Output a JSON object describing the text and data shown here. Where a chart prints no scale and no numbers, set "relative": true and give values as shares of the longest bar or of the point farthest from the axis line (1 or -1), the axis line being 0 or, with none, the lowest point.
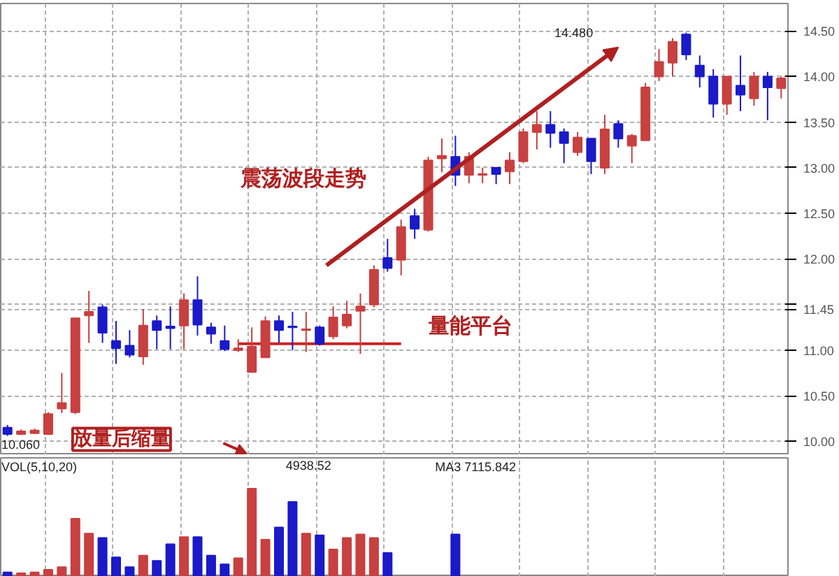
{
  "chart_data": [
    {
      "type": "candlestick",
      "categories": [
        null,
        null,
        null,
        null,
        null,
        null,
        null,
        null,
        null,
        null,
        null,
        null,
        null,
        null,
        null,
        null,
        null,
        null,
        null,
        null,
        null,
        null,
        null,
        null,
        null,
        null,
        null,
        null,
        null,
        null,
        null,
        null,
        null,
        null,
        null,
        null,
        null,
        null,
        null,
        null,
        null,
        null,
        null,
        null,
        null,
        null,
        null,
        null,
        null,
        null,
        null,
        null,
        null,
        null,
        null,
        null,
        null,
        null
      ],
      "ohlc": [
        [
          10.15,
          10.18,
          10.06,
          10.08
        ],
        [
          10.08,
          10.13,
          10.07,
          10.11
        ],
        [
          10.09,
          10.14,
          10.08,
          10.12
        ],
        [
          10.08,
          10.32,
          10.07,
          10.3
        ],
        [
          10.36,
          10.75,
          10.31,
          10.42
        ],
        [
          10.32,
          11.35,
          10.3,
          11.35
        ],
        [
          11.38,
          11.65,
          11.08,
          11.42
        ],
        [
          11.47,
          11.5,
          11.08,
          11.19
        ],
        [
          11.1,
          11.32,
          10.85,
          11.02
        ],
        [
          11.05,
          11.22,
          10.92,
          10.95
        ],
        [
          10.93,
          11.45,
          10.84,
          11.27
        ],
        [
          11.32,
          11.38,
          11.01,
          11.22
        ],
        [
          11.26,
          11.48,
          11.01,
          11.24
        ],
        [
          11.27,
          11.62,
          11.01,
          11.55
        ],
        [
          11.55,
          11.81,
          11.16,
          11.28
        ],
        [
          11.25,
          11.3,
          11.07,
          11.18
        ],
        [
          11.1,
          11.27,
          10.99,
          11.01
        ],
        [
          11.0,
          11.12,
          10.98,
          11.02
        ],
        [
          10.76,
          11.25,
          10.76,
          11.04
        ],
        [
          10.92,
          11.37,
          10.92,
          11.32
        ],
        [
          11.32,
          11.38,
          11.08,
          11.22
        ],
        [
          11.26,
          11.42,
          11.0,
          11.25
        ],
        [
          11.22,
          11.42,
          10.98,
          11.23
        ],
        [
          11.25,
          11.27,
          11.05,
          11.07
        ],
        [
          11.15,
          11.48,
          11.12,
          11.36
        ],
        [
          11.27,
          11.54,
          11.24,
          11.39
        ],
        [
          11.43,
          11.62,
          10.96,
          11.48
        ],
        [
          11.5,
          11.93,
          11.47,
          11.88
        ],
        [
          12.01,
          12.22,
          11.86,
          11.9
        ],
        [
          11.99,
          12.43,
          11.82,
          12.35
        ],
        [
          12.47,
          12.55,
          12.22,
          12.33
        ],
        [
          12.32,
          13.12,
          12.3,
          13.08
        ],
        [
          13.1,
          13.32,
          12.95,
          13.13
        ],
        [
          13.12,
          13.35,
          12.8,
          12.92
        ],
        [
          12.92,
          13.17,
          12.83,
          13.12
        ],
        [
          12.93,
          13.0,
          12.83,
          12.92
        ],
        [
          13.0,
          13.0,
          12.82,
          12.93
        ],
        [
          12.96,
          13.17,
          12.82,
          13.08
        ],
        [
          13.07,
          13.43,
          13.05,
          13.39
        ],
        [
          13.39,
          13.62,
          13.2,
          13.47
        ],
        [
          13.47,
          13.62,
          13.22,
          13.38
        ],
        [
          13.39,
          13.43,
          13.05,
          13.27
        ],
        [
          13.17,
          13.39,
          13.13,
          13.33
        ],
        [
          13.32,
          13.32,
          12.93,
          13.07
        ],
        [
          13.0,
          13.58,
          12.93,
          13.42
        ],
        [
          13.48,
          13.52,
          13.22,
          13.32
        ],
        [
          13.24,
          13.37,
          13.05,
          13.35
        ],
        [
          13.3,
          13.93,
          13.3,
          13.88
        ],
        [
          14.0,
          14.3,
          13.95,
          14.16
        ],
        [
          14.15,
          14.42,
          14.0,
          14.38
        ],
        [
          14.46,
          14.48,
          14.18,
          14.24
        ],
        [
          14.12,
          14.23,
          13.88,
          14.0
        ],
        [
          14.0,
          14.08,
          13.55,
          13.7
        ],
        [
          13.7,
          14.0,
          13.58,
          14.0
        ],
        [
          13.9,
          14.23,
          13.62,
          13.8
        ],
        [
          13.76,
          14.05,
          13.68,
          14.0
        ],
        [
          14.0,
          14.05,
          13.52,
          13.88
        ],
        [
          13.87,
          14.0,
          13.76,
          13.98
        ]
      ],
      "colors": [
        "#1a1ac8",
        "#c84040",
        "#c84040",
        "#c84040",
        "#c84040",
        "#c84040",
        "#c84040",
        "#1a1ac8",
        "#1a1ac8",
        "#1a1ac8",
        "#c84040",
        "#1a1ac8",
        "#1a1ac8",
        "#c84040",
        "#1a1ac8",
        "#1a1ac8",
        "#1a1ac8",
        "#c84040",
        "#c84040",
        "#c84040",
        "#1a1ac8",
        "#1a1ac8",
        "#c84040",
        "#1a1ac8",
        "#c84040",
        "#c84040",
        "#c84040",
        "#c84040",
        "#1a1ac8",
        "#c84040",
        "#1a1ac8",
        "#c84040",
        "#c84040",
        "#1a1ac8",
        "#c84040",
        "#c84040",
        "#1a1ac8",
        "#c84040",
        "#c84040",
        "#c84040",
        "#1a1ac8",
        "#1a1ac8",
        "#c84040",
        "#1a1ac8",
        "#c84040",
        "#1a1ac8",
        "#c84040",
        "#c84040",
        "#c84040",
        "#c84040",
        "#1a1ac8",
        "#1a1ac8",
        "#1a1ac8",
        "#c84040",
        "#1a1ac8",
        "#c84040",
        "#1a1ac8",
        "#c84040"
      ],
      "series": [
        {
          "type": "line",
          "color": "#cc2222",
          "values": [
            null,
            null,
            null,
            null,
            null,
            null,
            null,
            null,
            null,
            null,
            null,
            null,
            null,
            null,
            null,
            null,
            null,
            11.07,
            11.07,
            11.07,
            11.07,
            11.07,
            11.07,
            11.07,
            11.07,
            11.07,
            11.07,
            11.07,
            11.07,
            11.07,
            null,
            null,
            null,
            null,
            null,
            null,
            null,
            null,
            null,
            null,
            null,
            null,
            null,
            null,
            null,
            null,
            null,
            null,
            null,
            null,
            null,
            null,
            null,
            null,
            null,
            null,
            null,
            null
          ]
        }
      ],
      "ylim": [
        9.85,
        14.8
      ],
      "yticks": [
        {
          "value": 10,
          "label": "10.00"
        },
        {
          "value": 10.5,
          "label": "10.50"
        },
        {
          "value": 11,
          "label": "11.00"
        },
        {
          "value": 11.45,
          "label": "11.45"
        },
        {
          "value": 11.5,
          "label": null
        },
        {
          "value": 12,
          "label": "12.00"
        },
        {
          "value": 12.5,
          "label": "12.50"
        },
        {
          "value": 13,
          "label": "13.00"
        },
        {
          "value": 13.5,
          "label": "13.50"
        },
        {
          "value": 14,
          "label": "14.00"
        },
        {
          "value": 14.5,
          "label": "14.50"
        }
      ],
      "grid": true,
      "annotations": [
        "震荡波段走势",
        "量能平台",
        "放量后缩量",
        "14.480",
        "10.060"
      ]
    },
    {
      "type": "bar",
      "title": "VOL(5,10,20)",
      "relative": true,
      "categories": [
        null,
        null,
        null,
        null,
        null,
        null,
        null,
        null,
        null,
        null,
        null,
        null,
        null,
        null,
        null,
        null,
        null,
        null,
        null,
        null,
        null,
        null,
        null,
        null,
        null,
        null,
        null,
        null,
        null,
        null,
        null,
        null,
        null,
        null,
        null,
        null,
        null,
        null,
        null,
        null,
        null,
        null,
        null,
        null,
        null,
        null,
        null,
        null,
        null,
        null,
        null,
        null,
        null,
        null,
        null,
        null,
        null,
        null
      ],
      "values": [
        0.05,
        0.04,
        0.05,
        0.08,
        0.11,
        0.66,
        0.49,
        0.44,
        0.22,
        0.11,
        0.24,
        0.18,
        0.37,
        0.45,
        0.45,
        0.24,
        0.14,
        0.21,
        1.0,
        0.42,
        0.56,
        0.85,
        0.49,
        0.47,
        0.31,
        0.44,
        0.48,
        0.44,
        0.27,
        null,
        null,
        null,
        null,
        0.48,
        null,
        null,
        null,
        null,
        null,
        null,
        null,
        null,
        null,
        null,
        null,
        null,
        null,
        null,
        null,
        null,
        null,
        null,
        null,
        null,
        null,
        null,
        null,
        null
      ],
      "colors": [
        "#1a1ac8",
        "#c84040",
        "#c84040",
        "#c84040",
        "#c84040",
        "#c84040",
        "#c84040",
        "#1a1ac8",
        "#1a1ac8",
        "#1a1ac8",
        "#c84040",
        "#1a1ac8",
        "#1a1ac8",
        "#c84040",
        "#1a1ac8",
        "#1a1ac8",
        "#1a1ac8",
        "#c84040",
        "#c84040",
        "#c84040",
        "#1a1ac8",
        "#1a1ac8",
        "#c84040",
        "#1a1ac8",
        "#c84040",
        "#c84040",
        "#c84040",
        "#c84040",
        "#1a1ac8",
        "#c84040",
        "#1a1ac8",
        "#c84040",
        "#c84040",
        "#1a1ac8",
        "#c84040",
        "#c84040",
        "#1a1ac8",
        "#c84040",
        "#c84040",
        "#c84040",
        "#1a1ac8",
        "#1a1ac8",
        "#c84040",
        "#1a1ac8",
        "#c84040",
        "#1a1ac8",
        "#c84040",
        "#c84040",
        "#c84040",
        "#c84040",
        "#1a1ac8",
        "#1a1ac8",
        "#1a1ac8",
        "#c84040",
        "#1a1ac8",
        "#c84040",
        "#1a1ac8",
        "#c84040"
      ],
      "grid": "x",
      "annotations": [
        "4938.52",
        "MA3 7115.842"
      ]
    }
  ]
}
